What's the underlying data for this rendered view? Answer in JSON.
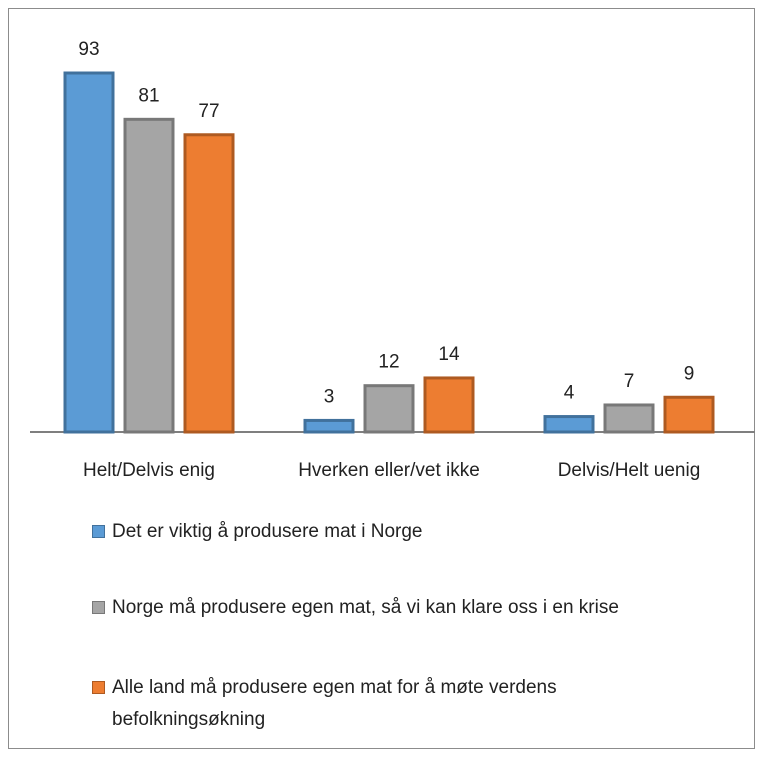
{
  "chart_data": {
    "type": "bar",
    "categories": [
      "Helt/Delvis enig",
      "Hverken eller/vet ikke",
      "Delvis/Helt uenig"
    ],
    "series": [
      {
        "name": "Det er viktig å produsere mat i Norge",
        "color": "#5b9bd5",
        "values": [
          93,
          3,
          4
        ]
      },
      {
        "name": "Norge må produsere egen mat, så vi kan klare oss i en krise",
        "color": "#a5a5a5",
        "values": [
          81,
          12,
          7
        ]
      },
      {
        "name": "Alle land må produsere egen mat for å møte verdens befolkningsøkning",
        "color": "#ed7d31",
        "values": [
          77,
          14,
          9
        ]
      }
    ],
    "legend": "bottom"
  }
}
